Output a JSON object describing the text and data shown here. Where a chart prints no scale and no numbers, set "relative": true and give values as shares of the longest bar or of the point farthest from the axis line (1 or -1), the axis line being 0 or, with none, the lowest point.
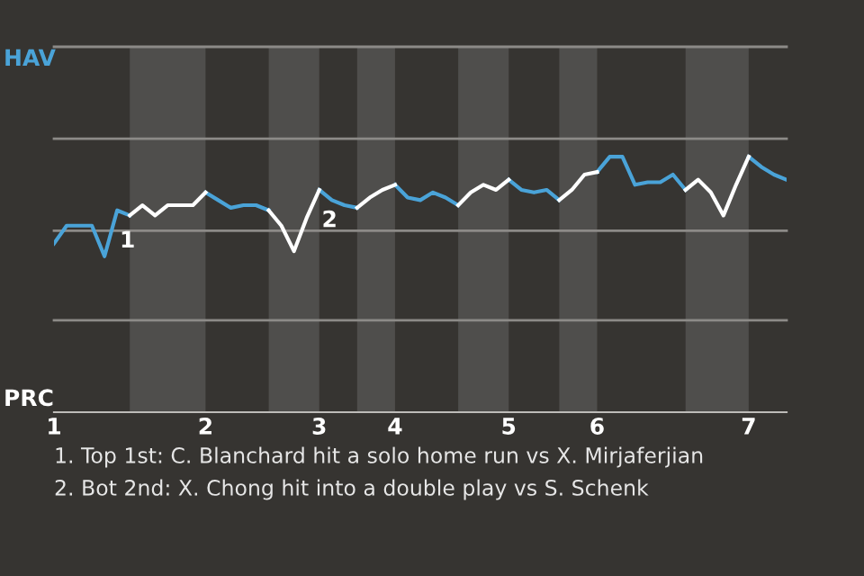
{
  "chart_data": {
    "type": "line",
    "relative": true,
    "marker": "none",
    "line_style": "solid",
    "categories": [
      "1",
      null,
      null,
      null,
      null,
      null,
      null,
      null,
      null,
      null,
      null,
      null,
      "2",
      null,
      null,
      null,
      null,
      null,
      null,
      null,
      null,
      "3",
      null,
      null,
      null,
      null,
      null,
      "4",
      null,
      null,
      null,
      null,
      null,
      null,
      null,
      null,
      "5",
      null,
      null,
      null,
      null,
      null,
      null,
      "6",
      null,
      null,
      null,
      null,
      null,
      null,
      null,
      null,
      null,
      null,
      null,
      "7",
      null,
      null,
      null
    ],
    "series": [
      {
        "name": "HAV",
        "color": "#4aa3d8",
        "values": [
          0.66,
          0.73,
          0.73,
          0.73,
          0.61,
          0.79,
          0.77,
          null,
          null,
          null,
          null,
          null,
          0.86,
          0.83,
          0.8,
          0.81,
          0.81,
          0.79,
          null,
          null,
          null,
          0.87,
          0.83,
          0.81,
          0.8,
          null,
          null,
          0.89,
          0.84,
          0.83,
          0.86,
          0.84,
          0.81,
          null,
          null,
          null,
          0.91,
          0.87,
          0.86,
          0.87,
          0.83,
          null,
          null,
          0.94,
          1,
          1,
          0.89,
          0.9,
          0.9,
          0.93,
          0.87,
          null,
          null,
          null,
          null,
          1,
          0.96,
          0.93,
          0.91
        ]
      },
      {
        "name": "PRC",
        "color": "#ffffff",
        "values": [
          null,
          null,
          null,
          null,
          null,
          null,
          0.77,
          0.81,
          0.77,
          0.81,
          0.81,
          0.81,
          0.86,
          null,
          null,
          null,
          null,
          0.79,
          0.73,
          0.63,
          0.76,
          0.87,
          null,
          null,
          0.8,
          0.84,
          0.87,
          0.89,
          null,
          null,
          null,
          null,
          0.81,
          0.86,
          0.89,
          0.87,
          0.91,
          null,
          null,
          null,
          0.83,
          0.87,
          0.93,
          0.94,
          null,
          null,
          null,
          null,
          null,
          null,
          0.87,
          0.91,
          0.86,
          0.77,
          0.89,
          1,
          null,
          null,
          null
        ]
      }
    ],
    "ref_lines": [
      {
        "axis": "y",
        "value": 0.36,
        "color": "#8c8a87"
      },
      {
        "axis": "y",
        "value": 0.71,
        "color": "#8c8a87"
      },
      {
        "axis": "y",
        "value": 1.07,
        "color": "#8c8a87"
      },
      {
        "axis": "y",
        "value": 1.43,
        "color": "#8c8a87"
      }
    ],
    "annotations": [
      {
        "text": "1",
        "y": 0.79
      },
      {
        "text": "2",
        "x": "3",
        "y": 0.87
      },
      "1. Top 1st: C. Blanchard hit a solo home run vs X. Mirjaferjian",
      "2. Bot 2nd: X. Chong hit into a double play vs S. Schenk"
    ]
  }
}
